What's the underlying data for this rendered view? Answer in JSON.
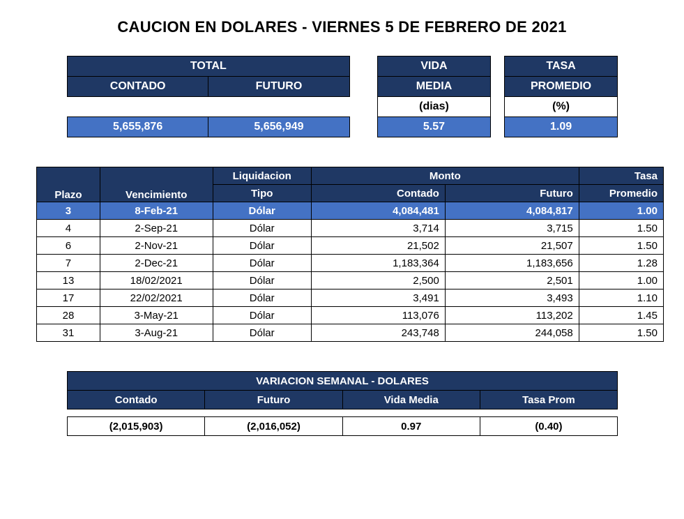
{
  "title": "CAUCION EN DOLARES - VIERNES 5 DE FEBRERO DE 2021",
  "colors": {
    "header_dark": "#1f3864",
    "header_blue": "#4472c4",
    "text_white": "#ffffff",
    "text_black": "#000000",
    "bg": "#ffffff"
  },
  "summary": {
    "headers": {
      "total": "TOTAL",
      "contado": "CONTADO",
      "futuro": "FUTURO",
      "vida_media": "VIDA MEDIA",
      "tasa_promedio": "TASA PROMEDIO",
      "dias": "(dias)",
      "pct": "(%)"
    },
    "values": {
      "contado": "5,655,876",
      "futuro": "5,656,949",
      "vida_media": "5.57",
      "tasa_promedio": "1.09"
    }
  },
  "detail": {
    "headers": {
      "plazo": "Plazo",
      "vencimiento": "Vencimiento",
      "liquidacion": "Liquidacion",
      "tipo": "Tipo",
      "monto": "Monto",
      "contado": "Contado",
      "futuro": "Futuro",
      "tasa": "Tasa",
      "promedio": "Promedio"
    },
    "rows": [
      {
        "plazo": "3",
        "venc": "8-Feb-21",
        "tipo": "Dólar",
        "contado": "4,084,481",
        "futuro": "4,084,817",
        "tasa": "1.00",
        "hl": true
      },
      {
        "plazo": "4",
        "venc": "2-Sep-21",
        "tipo": "Dólar",
        "contado": "3,714",
        "futuro": "3,715",
        "tasa": "1.50",
        "hl": false
      },
      {
        "plazo": "6",
        "venc": "2-Nov-21",
        "tipo": "Dólar",
        "contado": "21,502",
        "futuro": "21,507",
        "tasa": "1.50",
        "hl": false
      },
      {
        "plazo": "7",
        "venc": "2-Dec-21",
        "tipo": "Dólar",
        "contado": "1,183,364",
        "futuro": "1,183,656",
        "tasa": "1.28",
        "hl": false
      },
      {
        "plazo": "13",
        "venc": "18/02/2021",
        "tipo": "Dólar",
        "contado": "2,500",
        "futuro": "2,501",
        "tasa": "1.00",
        "hl": false
      },
      {
        "plazo": "17",
        "venc": "22/02/2021",
        "tipo": "Dólar",
        "contado": "3,491",
        "futuro": "3,493",
        "tasa": "1.10",
        "hl": false
      },
      {
        "plazo": "28",
        "venc": "3-May-21",
        "tipo": "Dólar",
        "contado": "113,076",
        "futuro": "113,202",
        "tasa": "1.45",
        "hl": false
      },
      {
        "plazo": "31",
        "venc": "3-Aug-21",
        "tipo": "Dólar",
        "contado": "243,748",
        "futuro": "244,058",
        "tasa": "1.50",
        "hl": false
      }
    ]
  },
  "weekly": {
    "title": "VARIACION SEMANAL - DOLARES",
    "headers": {
      "contado": "Contado",
      "futuro": "Futuro",
      "vida_media": "Vida Media",
      "tasa_prom": "Tasa Prom"
    },
    "values": {
      "contado": "(2,015,903)",
      "futuro": "(2,016,052)",
      "vida_media": "0.97",
      "tasa_prom": "(0.40)"
    }
  }
}
